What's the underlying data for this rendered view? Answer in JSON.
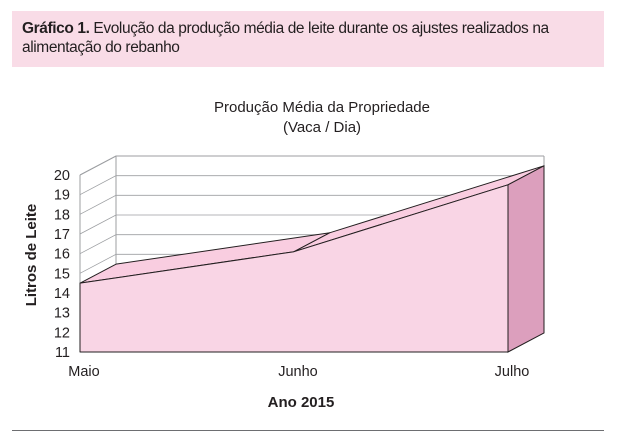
{
  "caption": {
    "label": "Gráfico 1.",
    "text": "Evolução da produção média de leite durante os ajustes realizados na alimentação do rebanho"
  },
  "chart_data": {
    "type": "area",
    "title_line1": "Produção Média da Propriedade",
    "title_line2": "(Vaca / Dia)",
    "xlabel": "Ano 2015",
    "ylabel": "Litros de Leite",
    "categories": [
      "Maio",
      "Junho",
      "Julho"
    ],
    "series": [
      {
        "values": [
          14.5,
          16.1,
          19.5
        ]
      }
    ],
    "ylim": [
      11,
      20
    ],
    "yticks": [
      11,
      12,
      13,
      14,
      15,
      16,
      17,
      18,
      19,
      20
    ],
    "grid": true,
    "style": "3d",
    "colors": {
      "area_front": "#f9d5e5",
      "area_top": "#f9cde0",
      "area_side": "#dc9fbd",
      "outline": "#231f20",
      "gridline": "#9d9fa2"
    }
  }
}
